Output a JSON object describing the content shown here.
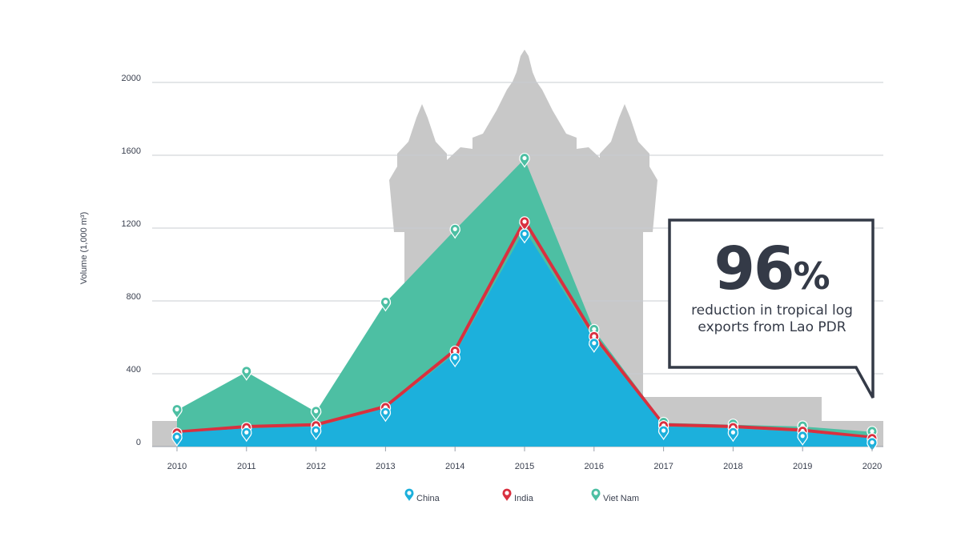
{
  "chart_data": {
    "type": "area",
    "ylabel": "Volume (1,000 m³)",
    "ylim": [
      0,
      2000
    ],
    "yticks": [
      "0",
      "400",
      "800",
      "1200",
      "1600",
      "2000"
    ],
    "grid": "horizontal",
    "legend_position": "bottom-center",
    "categories": [
      "2010",
      "2011",
      "2012",
      "2013",
      "2014",
      "2015",
      "2016",
      "2017",
      "2018",
      "2019",
      "2020"
    ],
    "series": [
      {
        "name": "Viet Nam",
        "color": "#4dbfa3",
        "marker": "map-pin-icon",
        "values": [
          200,
          410,
          190,
          790,
          1190,
          1580,
          640,
          130,
          120,
          110,
          80
        ]
      },
      {
        "name": "India",
        "color": "#d9303f",
        "marker": "map-pin-icon",
        "values": [
          80,
          110,
          120,
          220,
          530,
          1240,
          610,
          120,
          110,
          90,
          50
        ]
      },
      {
        "name": "China",
        "color": "#1cb0dc",
        "marker": "map-pin-icon",
        "values": [
          75,
          100,
          110,
          210,
          510,
          1190,
          590,
          110,
          100,
          80,
          45
        ]
      }
    ],
    "background": "grey temple silhouette (Lao landmark) behind the chart",
    "background_color": "#c8c8c8",
    "callout": {
      "value": "96",
      "unit": "%",
      "text": "reduction in tropical log exports from Lao PDR",
      "text_line1": "reduction in tropical log",
      "text_line2": "exports from Lao PDR",
      "border_color": "#343a47"
    }
  }
}
